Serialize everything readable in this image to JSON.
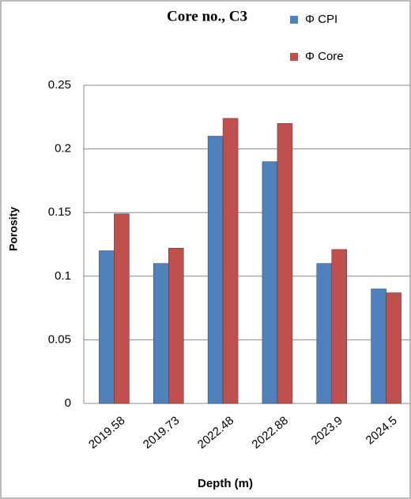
{
  "chart_data": {
    "type": "bar",
    "title": "Core no., C3",
    "x_label": "Depth (m)",
    "y_label": "Porosity",
    "categories": [
      "2019.58",
      "2019.73",
      "2022.48",
      "2022.88",
      "2023.9",
      "2024.5"
    ],
    "series": [
      {
        "name": "Φ CPI",
        "color": "#4f81bd",
        "values": [
          0.12,
          0.11,
          0.21,
          0.19,
          0.11,
          0.09
        ]
      },
      {
        "name": "Φ Core",
        "color": "#c0504d",
        "values": [
          0.149,
          0.122,
          0.224,
          0.22,
          0.121,
          0.087
        ]
      }
    ],
    "ylim": [
      0,
      0.25
    ],
    "yticks": [
      0,
      0.05,
      0.1,
      0.15,
      0.2,
      0.25
    ],
    "grid": true
  }
}
